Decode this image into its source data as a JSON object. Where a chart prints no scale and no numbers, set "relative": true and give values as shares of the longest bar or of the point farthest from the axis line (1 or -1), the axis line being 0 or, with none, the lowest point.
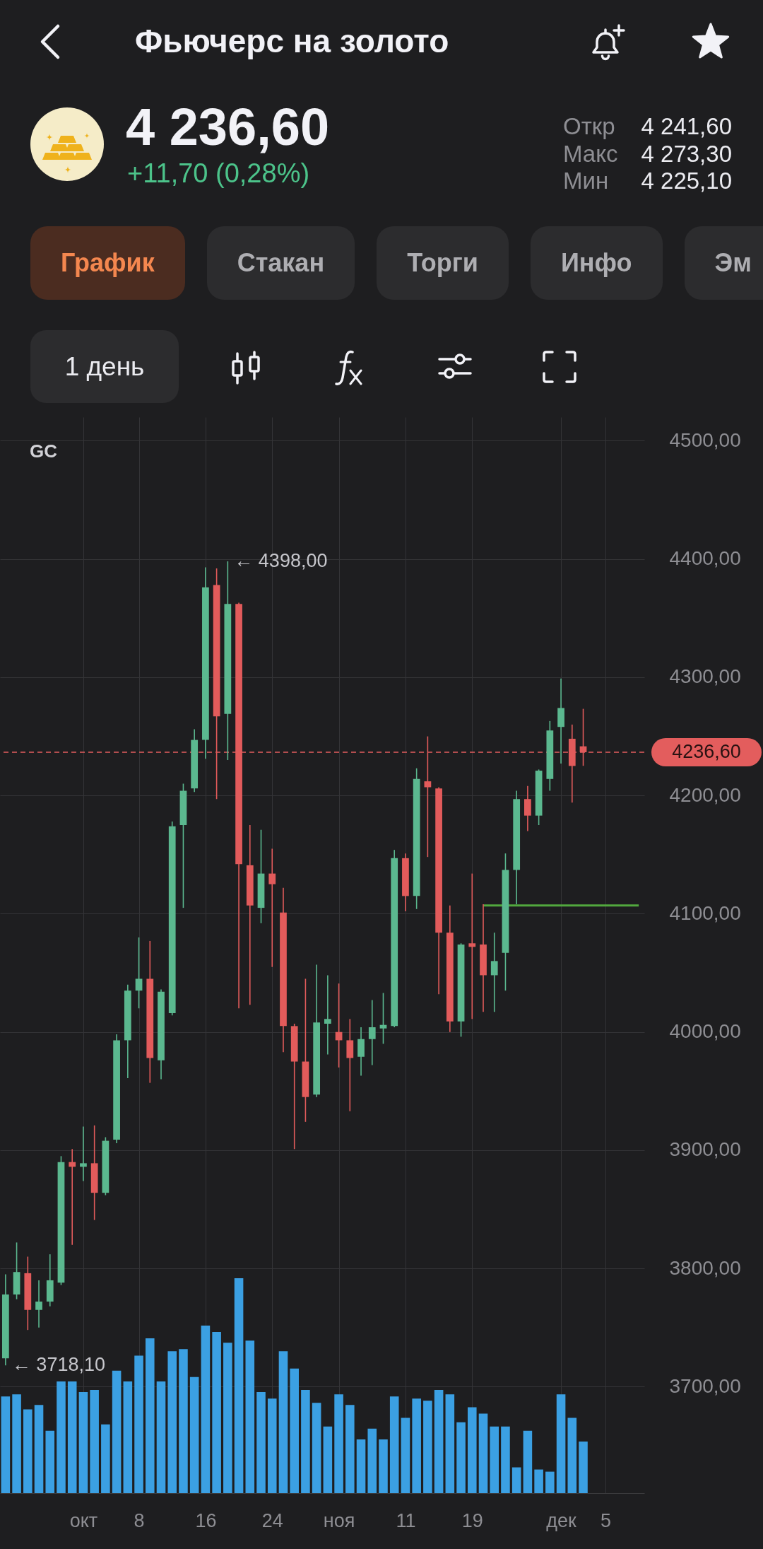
{
  "chart_data": [
    {
      "type": "candlestick",
      "title": "Фьючерс на золото",
      "subtitle": "4 236,60",
      "annotations": [
        "+11,70 (0,28%)",
        "Откр",
        "4 241,60",
        "Макс",
        "4 273,30",
        "Мин",
        "4 225,10",
        "График",
        "Стакан",
        "Торги",
        "Инфо",
        "Эм",
        "1 день",
        "GC",
        "← 4398,00",
        "← 3718,10"
      ],
      "categories": [
        null,
        null,
        null,
        null,
        null,
        null,
        null,
        "окт",
        null,
        null,
        null,
        null,
        "8",
        null,
        null,
        null,
        null,
        null,
        "16",
        null,
        null,
        null,
        null,
        null,
        "24",
        null,
        null,
        null,
        null,
        null,
        "ноя",
        null,
        null,
        null,
        null,
        null,
        "11",
        null,
        null,
        null,
        null,
        null,
        "19",
        null,
        null,
        null,
        null,
        null,
        null,
        null,
        "дек",
        null,
        null,
        null,
        "5",
        null,
        null,
        null
      ],
      "ohlc": [
        [
          3724,
          3795,
          3718.1,
          3778
        ],
        [
          3778,
          3822,
          3774,
          3797
        ],
        [
          3796,
          3810,
          3748,
          3765
        ],
        [
          3765,
          3790,
          3750,
          3772
        ],
        [
          3772,
          3812,
          3768,
          3790
        ],
        [
          3788,
          3895,
          3786,
          3890
        ],
        [
          3890,
          3901,
          3820,
          3886
        ],
        [
          3886,
          3920,
          3874,
          3889
        ],
        [
          3889,
          3921,
          3841,
          3864
        ],
        [
          3864,
          3911,
          3862,
          3908
        ],
        [
          3909,
          3998,
          3906,
          3993
        ],
        [
          3993,
          4040,
          3961,
          4035
        ],
        [
          4035,
          4080,
          4020,
          4045
        ],
        [
          4045,
          4077,
          3957,
          3978
        ],
        [
          3976,
          4036,
          3960,
          4034
        ],
        [
          4016,
          4178,
          4014,
          4174
        ],
        [
          4175,
          4210,
          4105,
          4204
        ],
        [
          4206,
          4256,
          4203,
          4247
        ],
        [
          4247,
          4393,
          4231,
          4376
        ],
        [
          4378,
          4392,
          4197,
          4267
        ],
        [
          4269,
          4398,
          4230,
          4362
        ],
        [
          4362,
          4363,
          4020,
          4142
        ],
        [
          4141,
          4175,
          4023,
          4107
        ],
        [
          4105,
          4171,
          4092,
          4134
        ],
        [
          4134,
          4155,
          4055,
          4125
        ],
        [
          4101,
          4122,
          3983,
          4005
        ],
        [
          4005,
          4007,
          3901,
          3975
        ],
        [
          3975,
          4045,
          3924,
          3945
        ],
        [
          3947,
          4057,
          3945,
          4008
        ],
        [
          4007,
          4048,
          3981,
          4011
        ],
        [
          4000,
          4041,
          3970,
          3993
        ],
        [
          3993,
          4011,
          3933,
          3978
        ],
        [
          3979,
          4004,
          3963,
          3994
        ],
        [
          3994,
          4027,
          3972,
          4004
        ],
        [
          4003,
          4033,
          3990,
          4006
        ],
        [
          4005,
          4154,
          4004,
          4147
        ],
        [
          4147,
          4151,
          4102,
          4115
        ],
        [
          4115,
          4223,
          4104,
          4214
        ],
        [
          4212,
          4250,
          4148,
          4207
        ],
        [
          4206,
          4207,
          4032,
          4084
        ],
        [
          4084,
          4107,
          4000,
          4009
        ],
        [
          4009,
          4075,
          3996,
          4074
        ],
        [
          4075,
          4134,
          4011,
          4072
        ],
        [
          4074,
          4108,
          4017,
          4048
        ],
        [
          4048,
          4084,
          4017,
          4060
        ],
        [
          4067,
          4151,
          4035,
          4137
        ],
        [
          4137,
          4204,
          4108,
          4197
        ],
        [
          4197,
          4208,
          4170,
          4183
        ],
        [
          4183,
          4222,
          4175,
          4221
        ],
        [
          4214,
          4263,
          4204,
          4255
        ],
        [
          4258,
          4299,
          4227,
          4274
        ],
        [
          4248,
          4260,
          4194,
          4225
        ],
        [
          4241.6,
          4273.3,
          4225.1,
          4236.6
        ],
        null,
        null,
        null,
        null,
        null
      ],
      "colors": [
        "#5bb88f",
        "#5bb88f",
        "#e25b5b",
        "#5bb88f",
        "#5bb88f",
        "#5bb88f",
        "#e25b5b",
        "#5bb88f",
        "#e25b5b",
        "#5bb88f",
        "#5bb88f",
        "#5bb88f",
        "#5bb88f",
        "#e25b5b",
        "#5bb88f",
        "#5bb88f",
        "#5bb88f",
        "#5bb88f",
        "#5bb88f",
        "#e25b5b",
        "#5bb88f",
        "#e25b5b",
        "#e25b5b",
        "#5bb88f",
        "#e25b5b",
        "#e25b5b",
        "#e25b5b",
        "#e25b5b",
        "#5bb88f",
        "#5bb88f",
        "#e25b5b",
        "#e25b5b",
        "#5bb88f",
        "#5bb88f",
        "#5bb88f",
        "#5bb88f",
        "#e25b5b",
        "#5bb88f",
        "#e25b5b",
        "#e25b5b",
        "#e25b5b",
        "#5bb88f",
        "#e25b5b",
        "#e25b5b",
        "#5bb88f",
        "#5bb88f",
        "#5bb88f",
        "#e25b5b",
        "#5bb88f",
        "#5bb88f",
        "#5bb88f",
        "#e25b5b",
        "#e25b5b",
        null,
        null,
        null,
        null,
        null
      ],
      "series": [
        {
          "type": "line",
          "color": "#52a83e",
          "values": [
            null,
            null,
            null,
            null,
            null,
            null,
            null,
            null,
            null,
            null,
            null,
            null,
            null,
            null,
            null,
            null,
            null,
            null,
            null,
            null,
            null,
            null,
            null,
            null,
            null,
            null,
            null,
            null,
            null,
            null,
            null,
            null,
            null,
            null,
            null,
            null,
            null,
            null,
            null,
            null,
            null,
            null,
            null,
            4107,
            4107,
            null,
            4107,
            4107,
            4107,
            4107,
            4107,
            4107,
            4107,
            4107,
            4107,
            4107,
            4107,
            4107
          ]
        }
      ],
      "ylim": [
        3610,
        4520
      ],
      "yticks": [
        {
          "value": 3700,
          "label": "3700,00"
        },
        {
          "value": 3800,
          "label": "3800,00"
        },
        {
          "value": 3900,
          "label": "3900,00"
        },
        {
          "value": 4000,
          "label": "4000,00"
        },
        {
          "value": 4100,
          "label": "4100,00"
        },
        {
          "value": 4200,
          "label": "4200,00"
        },
        {
          "value": 4300,
          "label": "4300,00"
        },
        {
          "value": 4400,
          "label": "4400,00"
        },
        {
          "value": 4500,
          "label": "4500,00"
        }
      ],
      "ref_lines": [
        {
          "axis": "y",
          "value": 4236.6,
          "label": "4236,60",
          "color": "#e35d5d",
          "line_style": "dashed"
        }
      ],
      "grid": true
    },
    {
      "type": "bar",
      "relative": true,
      "color": "#3ba0e3",
      "categories": [
        null,
        null,
        null,
        null,
        null,
        null,
        null,
        null,
        null,
        null,
        null,
        null,
        null,
        null,
        null,
        null,
        null,
        null,
        null,
        null,
        null,
        null,
        null,
        null,
        null,
        null,
        null,
        null,
        null,
        null,
        null,
        null,
        null,
        null,
        null,
        null,
        null,
        null,
        null,
        null,
        null,
        null,
        null,
        null,
        null,
        null,
        null,
        null,
        null,
        null,
        null,
        null,
        null,
        null,
        null,
        null,
        null,
        null
      ],
      "values": [
        0.45,
        0.46,
        0.39,
        0.41,
        0.29,
        0.52,
        0.52,
        0.47,
        0.48,
        0.32,
        0.57,
        0.52,
        0.64,
        0.72,
        0.52,
        0.66,
        0.67,
        0.54,
        0.78,
        0.75,
        0.7,
        1,
        0.71,
        0.47,
        0.44,
        0.66,
        0.58,
        0.48,
        0.42,
        0.31,
        0.46,
        0.41,
        0.25,
        0.3,
        0.25,
        0.45,
        0.35,
        0.44,
        0.43,
        0.48,
        0.46,
        0.33,
        0.4,
        0.37,
        0.31,
        0.31,
        0.12,
        0.29,
        0.11,
        0.1,
        0.46,
        0.35,
        0.24,
        null,
        null,
        null,
        null,
        null
      ]
    }
  ]
}
